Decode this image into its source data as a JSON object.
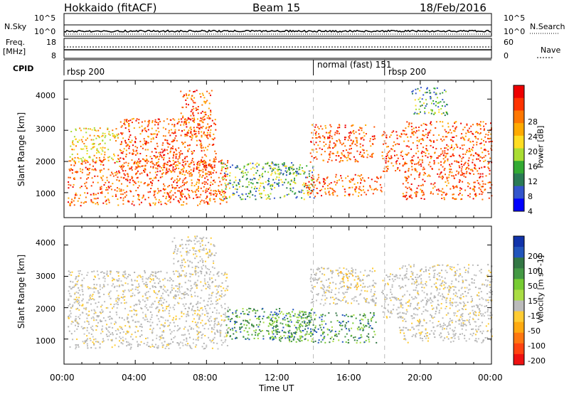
{
  "header": {
    "station": "Hokkaido (fitACF)",
    "beam": "Beam 15",
    "date": "18/Feb/2016"
  },
  "strips": {
    "nsky": {
      "label": "N.Sky",
      "ticks": [
        "10^5",
        "10^0"
      ],
      "right_label": "N.Search",
      "right_ticks": [
        "10^5",
        "10^0"
      ]
    },
    "freq": {
      "label": "Freq.",
      "unit": "[MHz]",
      "ticks": [
        "18",
        "8"
      ],
      "right_label": "Nave",
      "right_ticks": [
        "60",
        "0"
      ]
    },
    "cpid": {
      "label": "CPID",
      "segments": [
        "rbsp 200",
        "normal (fast) 151",
        "rbsp 200"
      ]
    }
  },
  "chart_data": [
    {
      "type": "heatmap",
      "panel": "power",
      "xlabel": "",
      "ylabel": "Slant Range [km]",
      "x_range_hours": [
        0,
        24
      ],
      "ylim": [
        200,
        4600
      ],
      "y_ticks": [
        1000,
        2000,
        3000,
        4000
      ],
      "colorbar": {
        "label": "Power [dB]",
        "ticks": [
          4,
          8,
          12,
          16,
          20,
          24,
          28
        ],
        "colors": [
          "#0000ff",
          "#3355cc",
          "#2a7a55",
          "#33aa33",
          "#aadd33",
          "#ffdd22",
          "#ffaa00",
          "#ff7700",
          "#ff3300",
          "#ee0000"
        ]
      },
      "regions": [
        {
          "x0": 0.2,
          "x1": 9.2,
          "y0": 600,
          "y1": 2100,
          "level": "high"
        },
        {
          "x0": 3.0,
          "x1": 8.5,
          "y0": 1600,
          "y1": 3400,
          "level": "high"
        },
        {
          "x0": 6.5,
          "x1": 8.3,
          "y0": 2800,
          "y1": 4300,
          "level": "high"
        },
        {
          "x0": 0.3,
          "x1": 3.0,
          "y0": 2000,
          "y1": 3100,
          "level": "mid"
        },
        {
          "x0": 8.8,
          "x1": 14.0,
          "y0": 800,
          "y1": 2000,
          "level": "low"
        },
        {
          "x0": 11.5,
          "x1": 13.5,
          "y0": 1600,
          "y1": 2000,
          "level": "low"
        },
        {
          "x0": 13.5,
          "x1": 17.8,
          "y0": 900,
          "y1": 1600,
          "level": "high"
        },
        {
          "x0": 13.8,
          "x1": 17.5,
          "y0": 2000,
          "y1": 3200,
          "level": "high"
        },
        {
          "x0": 17.8,
          "x1": 19.0,
          "y0": 1700,
          "y1": 3000,
          "level": "high"
        },
        {
          "x0": 19.0,
          "x1": 24.0,
          "y0": 800,
          "y1": 3300,
          "level": "high"
        },
        {
          "x0": 19.5,
          "x1": 21.5,
          "y0": 3500,
          "y1": 4400,
          "level": "low"
        }
      ]
    },
    {
      "type": "heatmap",
      "panel": "velocity",
      "xlabel": "Time UT",
      "ylabel": "Slant Range [km]",
      "x_range_hours": [
        0,
        24
      ],
      "x_ticks": [
        "00:00",
        "04:00",
        "08:00",
        "12:00",
        "16:00",
        "20:00",
        "00:00"
      ],
      "ylim": [
        200,
        4600
      ],
      "y_ticks": [
        1000,
        2000,
        3000,
        4000
      ],
      "colorbar": {
        "label": "Velocity [m s^-1]",
        "ticks": [
          200,
          100,
          50,
          15,
          -15,
          -50,
          -100,
          -200
        ],
        "colors": [
          "#1133aa",
          "#2255bb",
          "#337744",
          "#449944",
          "#77cc33",
          "#aadd44",
          "#bbbbbb",
          "#ffcc33",
          "#ffaa11",
          "#ff7711",
          "#ff4411",
          "#ee1111"
        ]
      },
      "regions": [
        {
          "x0": 0.2,
          "x1": 9.2,
          "y0": 700,
          "y1": 3200,
          "level": "gray"
        },
        {
          "x0": 6.0,
          "x1": 8.5,
          "y0": 3000,
          "y1": 4300,
          "level": "gray"
        },
        {
          "x0": 9.0,
          "x1": 14.0,
          "y0": 1000,
          "y1": 2000,
          "level": "green"
        },
        {
          "x0": 11.5,
          "x1": 17.5,
          "y0": 900,
          "y1": 1900,
          "level": "green"
        },
        {
          "x0": 13.8,
          "x1": 17.5,
          "y0": 2100,
          "y1": 3300,
          "level": "gray"
        },
        {
          "x0": 15.5,
          "x1": 16.5,
          "y0": 2600,
          "y1": 3200,
          "level": "orange"
        },
        {
          "x0": 17.8,
          "x1": 19.0,
          "y0": 1700,
          "y1": 3100,
          "level": "gray"
        },
        {
          "x0": 18.8,
          "x1": 24.0,
          "y0": 900,
          "y1": 3400,
          "level": "gray"
        }
      ]
    }
  ]
}
